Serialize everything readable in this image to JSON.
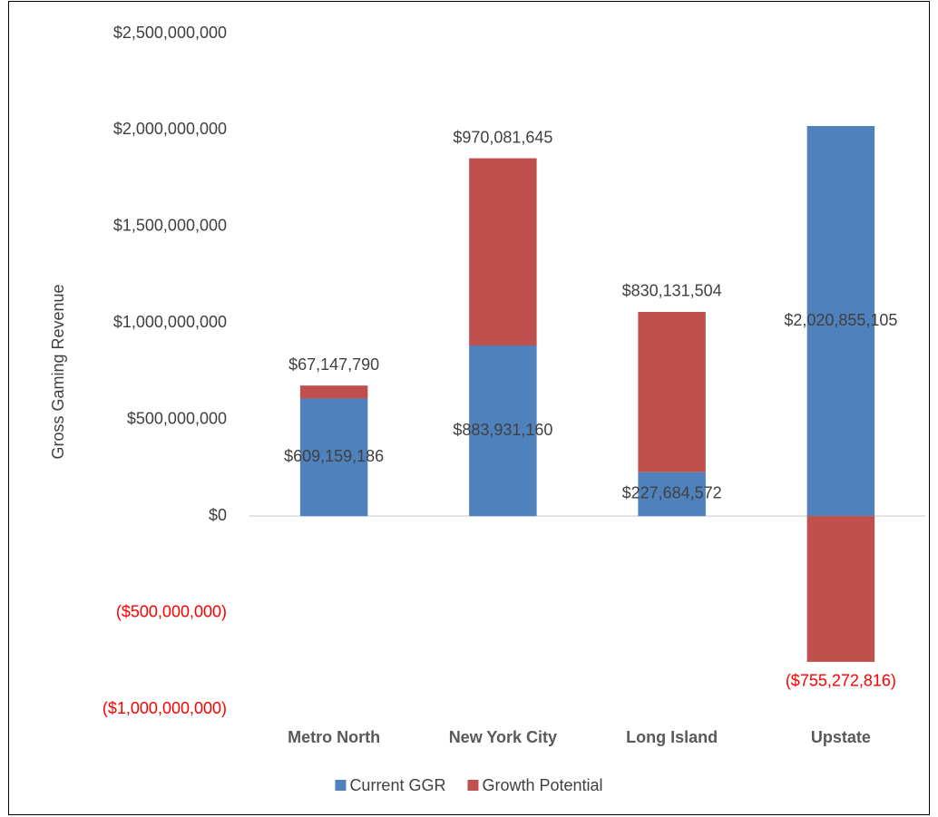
{
  "chart_data": {
    "type": "stacked_bar",
    "y_label": "Gross Gaming Revenue",
    "categories": [
      "Metro North",
      "New York City",
      "Long Island",
      "Upstate"
    ],
    "series": [
      {
        "name": "Current GGR",
        "color": "#4f81bd",
        "values": [
          609159186,
          883931160,
          227684572,
          2020855105
        ],
        "value_labels": [
          "$609,159,186",
          "$883,931,160",
          "$227,684,572",
          "$2,020,855,105"
        ]
      },
      {
        "name": "Growth Potential",
        "color": "#c0504d",
        "values": [
          67147790,
          970081645,
          830131504,
          -755272816
        ],
        "value_labels": [
          "$67,147,790",
          "$970,081,645",
          "$830,131,504",
          "($755,272,816)"
        ]
      }
    ],
    "ylim": [
      -1000000000,
      2500000000
    ],
    "yticks": [
      {
        "value": -1000000000,
        "label": "($1,000,000,000)"
      },
      {
        "value": -500000000,
        "label": "($500,000,000)"
      },
      {
        "value": 0,
        "label": "$0"
      },
      {
        "value": 500000000,
        "label": "$500,000,000"
      },
      {
        "value": 1000000000,
        "label": "$1,000,000,000"
      },
      {
        "value": 1500000000,
        "label": "$1,500,000,000"
      },
      {
        "value": 2000000000,
        "label": "$2,000,000,000"
      },
      {
        "value": 2500000000,
        "label": "$2,500,000,000"
      }
    ],
    "negative_color": "#ff0000",
    "legend": "bottom"
  }
}
